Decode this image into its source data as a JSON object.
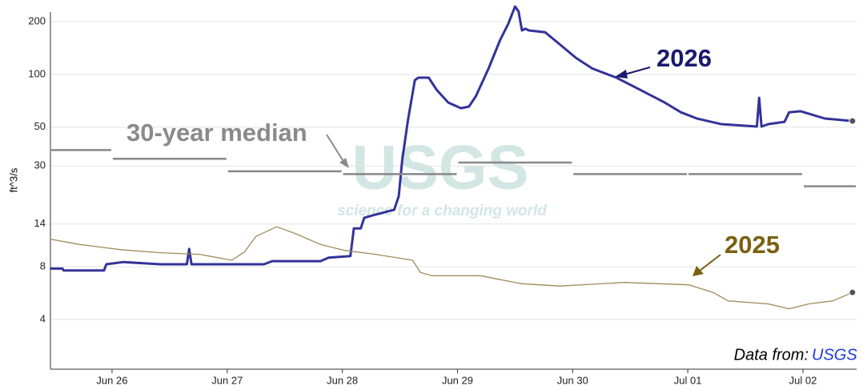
{
  "chart_data": {
    "type": "line",
    "y_label": "ft^3/s",
    "log_y": true,
    "grid": true,
    "xlim": [
      -0.535,
      6.466
    ],
    "xticks": [
      {
        "value": 0,
        "label": "Jun 26"
      },
      {
        "value": 1,
        "label": "Jun 27"
      },
      {
        "value": 2,
        "label": "Jun 28"
      },
      {
        "value": 3,
        "label": "Jun 29"
      },
      {
        "value": 4,
        "label": "Jun 30"
      },
      {
        "value": 5,
        "label": "Jul 01"
      },
      {
        "value": 6,
        "label": "Jul 02"
      }
    ],
    "ylim": [
      2.08,
      252
    ],
    "yticks": [
      4,
      8,
      14,
      30,
      50,
      100,
      200
    ],
    "series": [
      {
        "name": "2026",
        "color": "#333399",
        "style": "line",
        "x": [
          -0.54,
          -0.43,
          -0.42,
          -0.07,
          -0.05,
          0.1,
          0.42,
          0.65,
          0.67,
          0.69,
          1.32,
          1.39,
          1.81,
          1.88,
          2.07,
          2.1,
          2.16,
          2.19,
          2.28,
          2.36,
          2.45,
          2.49,
          2.52,
          2.57,
          2.63,
          2.66,
          2.75,
          2.82,
          2.92,
          3.03,
          3.1,
          3.16,
          3.27,
          3.37,
          3.44,
          3.5,
          3.53,
          3.56,
          3.59,
          3.62,
          3.76,
          3.89,
          4.03,
          4.17,
          4.38,
          4.59,
          4.8,
          4.94,
          5.08,
          5.29,
          5.6,
          5.62,
          5.64,
          5.7,
          5.84,
          5.88,
          5.98,
          6.19,
          6.43
        ],
        "values": [
          7.8,
          7.8,
          7.6,
          7.6,
          8.25,
          8.5,
          8.25,
          8.25,
          10.1,
          8.25,
          8.25,
          8.6,
          8.6,
          9.0,
          9.2,
          13.2,
          13.2,
          15.2,
          15.8,
          16.3,
          16.9,
          20.2,
          32.4,
          54.8,
          92.7,
          95.7,
          95.7,
          81.4,
          69.0,
          64.1,
          65.5,
          75.2,
          108,
          157,
          194,
          244,
          229,
          178,
          182,
          178,
          174,
          148,
          124,
          108,
          95.7,
          81.4,
          69,
          60.8,
          56,
          52,
          50.4,
          73.5,
          50.4,
          52,
          53.6,
          60.8,
          61.6,
          56,
          54.2
        ]
      },
      {
        "name": "2025",
        "color": "#a08a5a",
        "style": "line",
        "x": [
          -0.54,
          -0.28,
          0.07,
          0.42,
          0.76,
          1.04,
          1.15,
          1.25,
          1.43,
          1.6,
          1.81,
          2.02,
          2.29,
          2.61,
          2.68,
          2.78,
          3.2,
          3.55,
          3.89,
          4.45,
          5.01,
          5.22,
          5.35,
          5.7,
          5.88,
          6.05,
          6.26,
          6.43
        ],
        "values": [
          11.5,
          10.7,
          10.0,
          9.6,
          9.4,
          8.7,
          9.7,
          11.9,
          13.5,
          12.3,
          10.7,
          9.9,
          9.4,
          8.7,
          7.4,
          7.1,
          7.1,
          6.4,
          6.2,
          6.5,
          6.3,
          5.7,
          5.1,
          4.9,
          4.6,
          4.9,
          5.1,
          5.7
        ]
      },
      {
        "name": "30-year median",
        "color": "#888888",
        "style": "step",
        "x": [
          -1,
          0,
          1,
          2,
          3,
          4,
          5,
          6
        ],
        "values": [
          37,
          33,
          28,
          27,
          31.4,
          27,
          27,
          23
        ]
      }
    ],
    "watermark": "USGS",
    "watermark_tagline": "science for a changing world",
    "source_label": "Data from:",
    "source": "USGS"
  }
}
